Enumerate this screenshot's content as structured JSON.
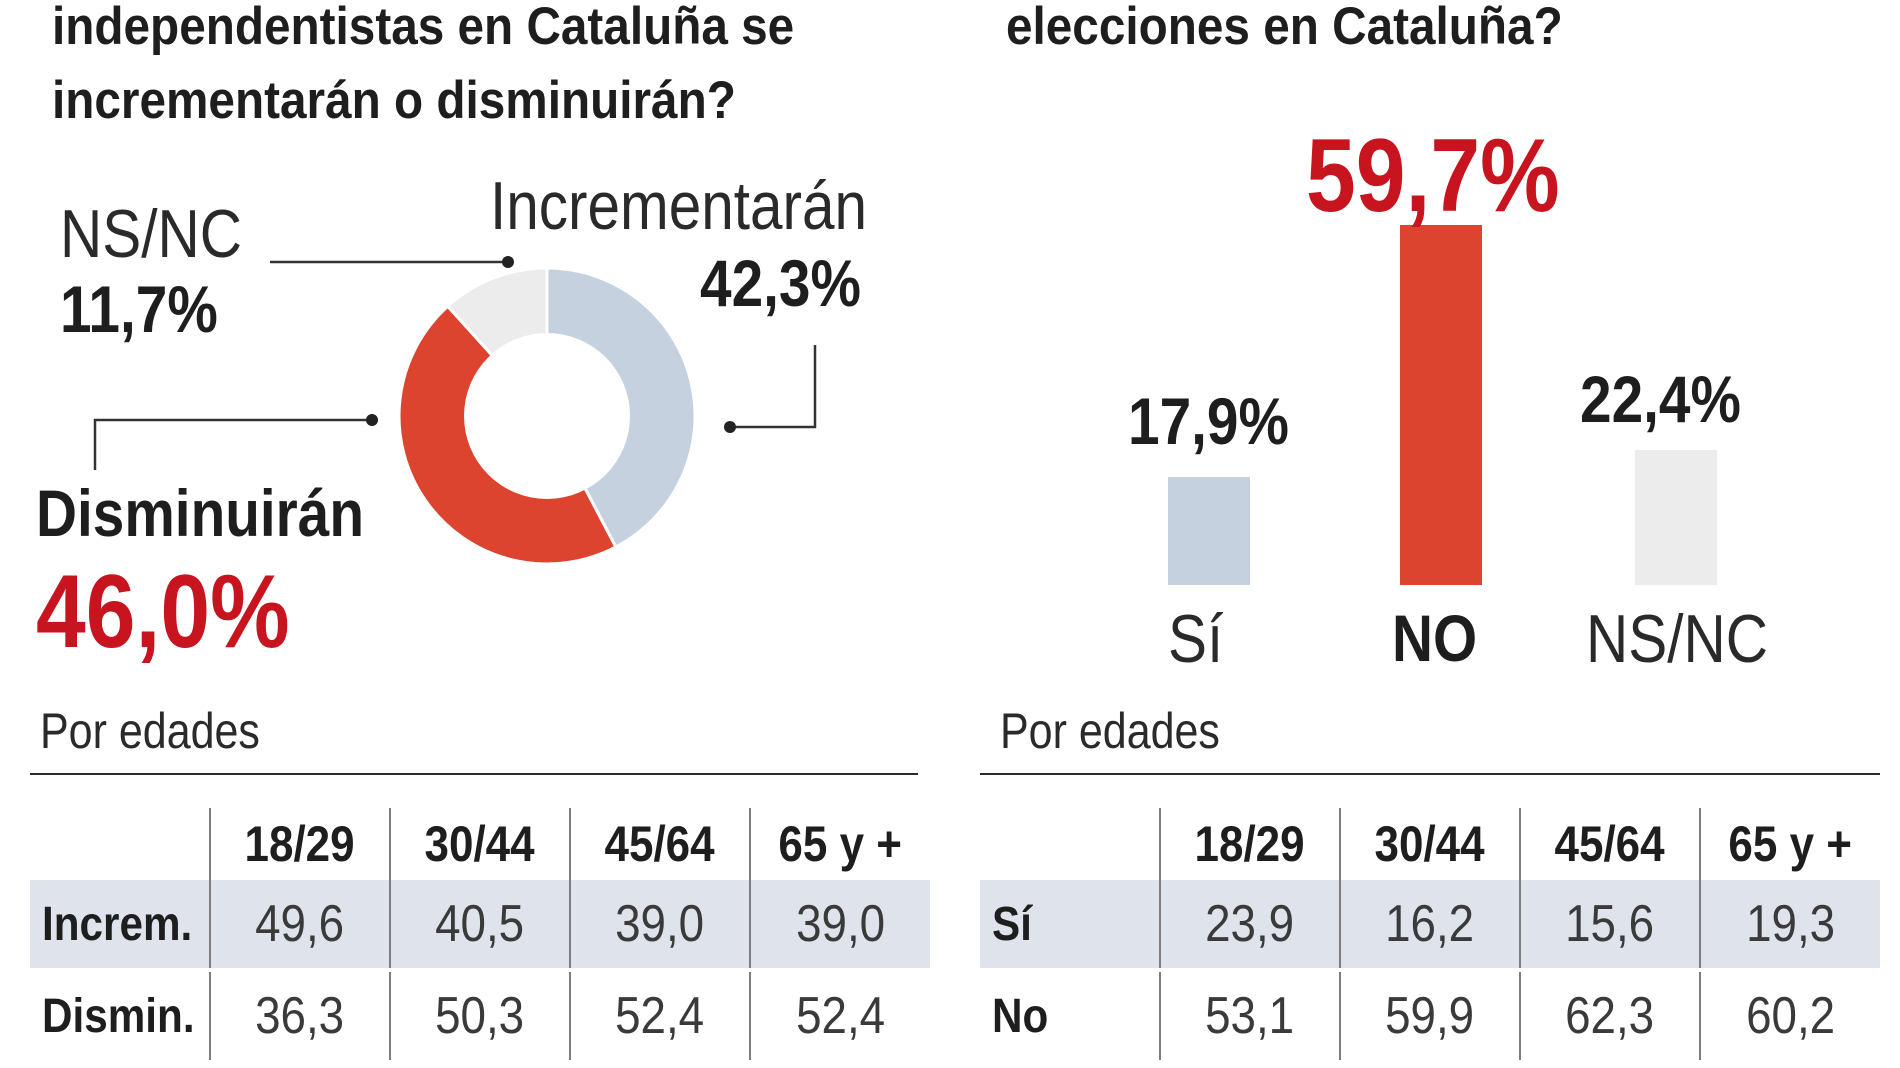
{
  "left": {
    "question": {
      "line1": "independentistas en Cataluña se",
      "line2": "incrementarán o disminuirán?"
    },
    "labels": {
      "ns_label": "NS/NC",
      "ns_pct": "11,7%",
      "inc_label": "Incrementarán",
      "inc_pct": "42,3%",
      "dis_label": "Disminuirán",
      "dis_pct": "46,0%"
    },
    "section": "Por edades",
    "table": {
      "headers": [
        "",
        "18/29",
        "30/44",
        "45/64",
        "65 y +"
      ],
      "rows": [
        {
          "label": "Increm.",
          "values": [
            "49,6",
            "40,5",
            "39,0",
            "39,0"
          ]
        },
        {
          "label": "Dismin.",
          "values": [
            "36,3",
            "50,3",
            "52,4",
            "52,4"
          ]
        }
      ]
    }
  },
  "right": {
    "question": {
      "line1": "elecciones en Cataluña?"
    },
    "bars": {
      "si_pct": "17,9%",
      "no_pct": "59,7%",
      "ns_pct": "22,4%",
      "si_label": "Sí",
      "no_label": "NO",
      "ns_label": "NS/NC"
    },
    "section": "Por edades",
    "table": {
      "headers": [
        "",
        "18/29",
        "30/44",
        "45/64",
        "65 y +"
      ],
      "rows": [
        {
          "label": "Sí",
          "values": [
            "23,9",
            "16,2",
            "15,6",
            "19,3"
          ]
        },
        {
          "label": "No",
          "values": [
            "53,1",
            "59,9",
            "62,3",
            "60,2"
          ]
        }
      ]
    }
  },
  "colors": {
    "red": "#dc4430",
    "red_text": "#c8141e",
    "blue": "#c6d1e0",
    "grey": "#ececec"
  },
  "chart_data": [
    {
      "type": "pie",
      "categories": [
        "Incrementarán",
        "Disminuirán",
        "NS/NC"
      ],
      "values": [
        42.3,
        46.0,
        11.7
      ]
    },
    {
      "type": "bar",
      "categories": [
        "Sí",
        "NO",
        "NS/NC"
      ],
      "values": [
        17.9,
        59.7,
        22.4
      ]
    }
  ]
}
